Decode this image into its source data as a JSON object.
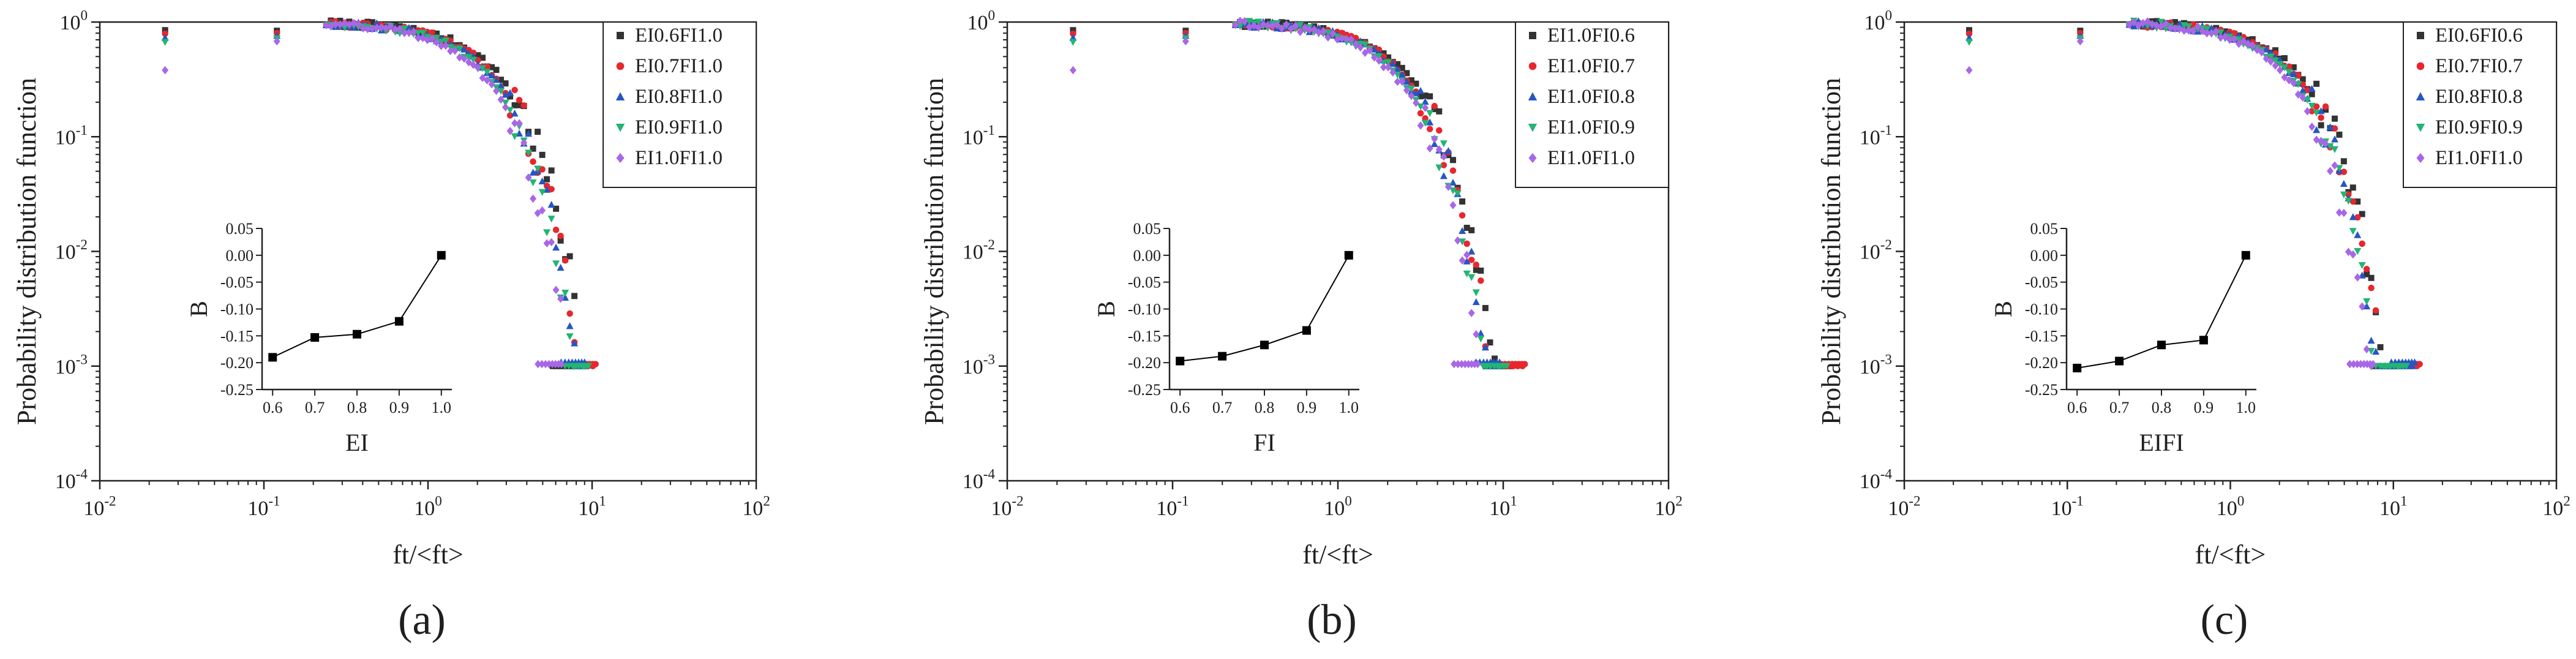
{
  "figure": {
    "panels": [
      "a",
      "b",
      "c"
    ],
    "colors": {
      "axis": "#222222",
      "series": [
        "#333333",
        "#e8262d",
        "#2456c4",
        "#22b573",
        "#a867e6"
      ],
      "inset_line": "#000000"
    }
  },
  "chart_data": [
    {
      "type": "scatter",
      "panel_label": "(a)",
      "xscale": "log",
      "yscale": "log",
      "xlim": [
        0.01,
        100
      ],
      "ylim": [
        0.0001,
        1
      ],
      "xlabel": "ft/<ft>",
      "ylabel": "Probability distribution function",
      "x_ticks": [
        "10^-2",
        "10^-1",
        "10^0",
        "10^1",
        "10^2"
      ],
      "y_ticks": [
        "10^-4",
        "10^-3",
        "10^-2",
        "10^-1",
        "10^0"
      ],
      "legend_position": "top-right",
      "series": [
        {
          "name": "EI0.6FI1.0",
          "marker": "square",
          "tail": 8.0,
          "spread": 1.12
        },
        {
          "name": "EI0.7FI1.0",
          "marker": "circle",
          "tail": 10.5,
          "spread": 1.05
        },
        {
          "name": "EI0.8FI1.0",
          "marker": "triangle-up",
          "tail": 9.0,
          "spread": 1.0
        },
        {
          "name": "EI0.9FI1.0",
          "marker": "triangle-down",
          "tail": 9.5,
          "spread": 0.96
        },
        {
          "name": "EI1.0FI1.0",
          "marker": "diamond",
          "tail": 6.5,
          "spread": 0.9
        }
      ],
      "inset": {
        "type": "line",
        "xlabel": "EI",
        "ylabel": "B",
        "x": [
          0.6,
          0.7,
          0.8,
          0.9,
          1.0
        ],
        "y": [
          -0.19,
          -0.153,
          -0.147,
          -0.123,
          0.0
        ],
        "xlim": [
          0.575,
          1.025
        ],
        "ylim": [
          -0.25,
          0.05
        ],
        "x_ticks": [
          0.6,
          0.7,
          0.8,
          0.9,
          1.0
        ],
        "x_tick_labels": [
          "0.6",
          "0.7",
          "0.8",
          "0.9",
          "1.0"
        ],
        "y_ticks": [
          -0.25,
          -0.2,
          -0.15,
          -0.1,
          -0.05,
          0.0,
          0.05
        ],
        "y_tick_labels": [
          "-0.25",
          "-0.20",
          "-0.15",
          "-0.10",
          "-0.05",
          "0.00",
          "0.05"
        ]
      }
    },
    {
      "type": "scatter",
      "panel_label": "(b)",
      "xscale": "log",
      "yscale": "log",
      "xlim": [
        0.01,
        100
      ],
      "ylim": [
        0.0001,
        1
      ],
      "xlabel": "ft/<ft>",
      "ylabel": "Probability distribution function",
      "x_ticks": [
        "10^-2",
        "10^-1",
        "10^0",
        "10^1",
        "10^2"
      ],
      "y_ticks": [
        "10^-4",
        "10^-3",
        "10^-2",
        "10^-1",
        "10^0"
      ],
      "legend_position": "top-right",
      "series": [
        {
          "name": "EI1.0FI0.6",
          "marker": "square",
          "tail": 11.0,
          "spread": 1.1
        },
        {
          "name": "EI1.0FI0.7",
          "marker": "circle",
          "tail": 13.5,
          "spread": 1.05
        },
        {
          "name": "EI1.0FI0.8",
          "marker": "triangle-up",
          "tail": 9.5,
          "spread": 1.0
        },
        {
          "name": "EI1.0FI0.9",
          "marker": "triangle-down",
          "tail": 10.5,
          "spread": 0.97
        },
        {
          "name": "EI1.0FI1.0",
          "marker": "diamond",
          "tail": 7.0,
          "spread": 0.92
        }
      ],
      "inset": {
        "type": "line",
        "xlabel": "FI",
        "ylabel": "B",
        "x": [
          0.6,
          0.7,
          0.8,
          0.9,
          1.0
        ],
        "y": [
          -0.197,
          -0.188,
          -0.167,
          -0.14,
          0.0
        ],
        "xlim": [
          0.575,
          1.025
        ],
        "ylim": [
          -0.25,
          0.05
        ],
        "x_ticks": [
          0.6,
          0.7,
          0.8,
          0.9,
          1.0
        ],
        "x_tick_labels": [
          "0.6",
          "0.7",
          "0.8",
          "0.9",
          "1.0"
        ],
        "y_ticks": [
          -0.25,
          -0.2,
          -0.15,
          -0.1,
          -0.05,
          0.0,
          0.05
        ],
        "y_tick_labels": [
          "-0.25",
          "-0.20",
          "-0.15",
          "-0.10",
          "-0.05",
          "0.00",
          "0.05"
        ]
      }
    },
    {
      "type": "scatter",
      "panel_label": "(c)",
      "xscale": "log",
      "yscale": "log",
      "xlim": [
        0.01,
        100
      ],
      "ylim": [
        0.0001,
        1
      ],
      "xlabel": "ft/<ft>",
      "ylabel": "Probability distribution function",
      "x_ticks": [
        "10^-2",
        "10^-1",
        "10^0",
        "10^1",
        "10^2"
      ],
      "y_ticks": [
        "10^-4",
        "10^-3",
        "10^-2",
        "10^-1",
        "10^0"
      ],
      "legend_position": "top-right",
      "series": [
        {
          "name": "EI0.6FI0.6",
          "marker": "square",
          "tail": 10.5,
          "spread": 1.1
        },
        {
          "name": "EI0.7FI0.7",
          "marker": "circle",
          "tail": 14.5,
          "spread": 1.05
        },
        {
          "name": "EI0.8FI0.8",
          "marker": "triangle-up",
          "tail": 13.5,
          "spread": 1.0
        },
        {
          "name": "EI0.9FI0.9",
          "marker": "triangle-down",
          "tail": 12.0,
          "spread": 0.96
        },
        {
          "name": "EI1.0FI1.0",
          "marker": "diamond",
          "tail": 7.5,
          "spread": 0.9
        }
      ],
      "inset": {
        "type": "line",
        "xlabel": "EIFI",
        "ylabel": "B",
        "x": [
          0.6,
          0.7,
          0.8,
          0.9,
          1.0
        ],
        "y": [
          -0.21,
          -0.197,
          -0.167,
          -0.158,
          0.0
        ],
        "xlim": [
          0.575,
          1.025
        ],
        "ylim": [
          -0.25,
          0.05
        ],
        "x_ticks": [
          0.6,
          0.7,
          0.8,
          0.9,
          1.0
        ],
        "x_tick_labels": [
          "0.6",
          "0.7",
          "0.8",
          "0.9",
          "1.0"
        ],
        "y_ticks": [
          -0.25,
          -0.2,
          -0.15,
          -0.1,
          -0.05,
          0.0,
          0.05
        ],
        "y_tick_labels": [
          "-0.25",
          "-0.20",
          "-0.15",
          "-0.10",
          "-0.05",
          "0.00",
          "0.05"
        ]
      }
    }
  ]
}
